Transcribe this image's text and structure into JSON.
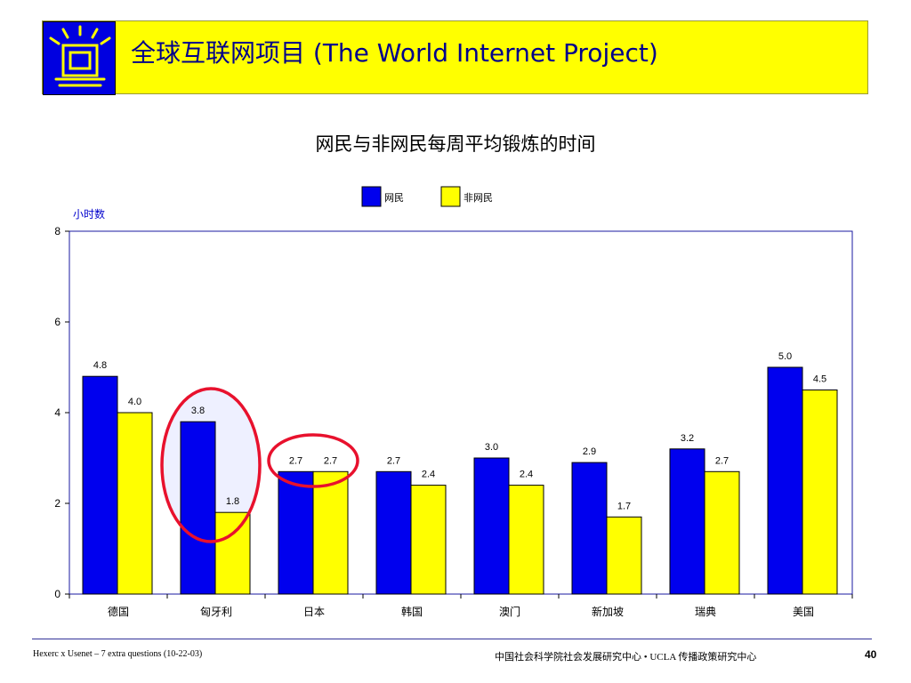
{
  "header": {
    "title": "全球互联网项目 (The World Internet Project)",
    "background_color": "#ffff00",
    "logo_icon": "gate-logo-icon",
    "logo_color": "#0000e0"
  },
  "chart_data": {
    "type": "bar",
    "title": "网民与非网民每周平均锻炼的时间",
    "ylabel": "小时数",
    "xlabel": "",
    "ylim": [
      0,
      8
    ],
    "yticks": [
      "0",
      "2",
      "4",
      "6",
      "8"
    ],
    "categories": [
      "德国",
      "匈牙利",
      "日本",
      "韩国",
      "澳门",
      "新加坡",
      "瑞典",
      "美国"
    ],
    "series": [
      {
        "name": "网民",
        "color": "#0000ee",
        "values": [
          4.8,
          3.8,
          2.7,
          2.7,
          3.0,
          2.9,
          3.2,
          5.0
        ],
        "labels": [
          "4.8",
          "3.8",
          "2.7",
          "2.7",
          "3.0",
          "2.9",
          "3.2",
          "5.0"
        ]
      },
      {
        "name": "非网民",
        "color": "#ffff00",
        "values": [
          4.0,
          1.8,
          2.7,
          2.4,
          2.4,
          1.7,
          2.7,
          4.5
        ],
        "labels": [
          "4.0",
          "1.8",
          "2.7",
          "2.4",
          "2.4",
          "1.7",
          "2.7",
          "4.5"
        ]
      }
    ],
    "legend_position": "top-center",
    "grid": false,
    "annotations": [
      {
        "type": "ellipse",
        "target": "匈牙利",
        "color": "#e8112d"
      },
      {
        "type": "ellipse",
        "target": "日本",
        "color": "#e8112d"
      }
    ]
  },
  "footer": {
    "left_text": "Hexerc x Usenet – 7 extra questions (10-22-03)",
    "center_text": "中国社会科学院社会发展研究中心 • UCLA 传播政策研究中心",
    "page_number": "40"
  }
}
